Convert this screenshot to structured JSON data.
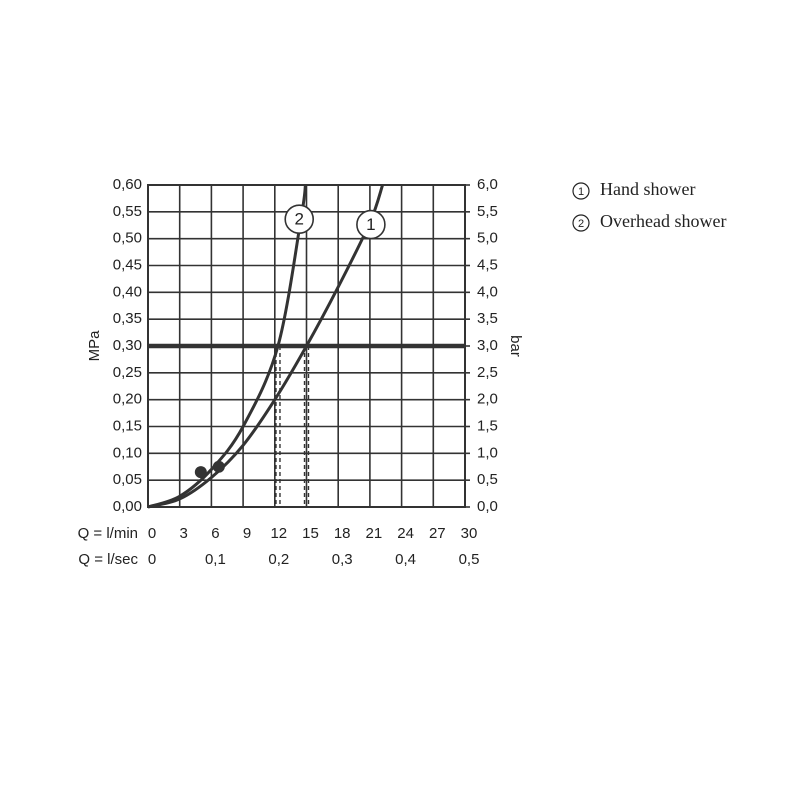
{
  "chart_data": {
    "type": "line",
    "y_label": "MPa",
    "y2_label": "bar",
    "x_label": "Q = l/min",
    "x2_label": "Q = l/sec",
    "xlim": [
      0,
      30
    ],
    "xticks": [
      0,
      3,
      6,
      9,
      12,
      15,
      18,
      21,
      24,
      27,
      30
    ],
    "x2lim": [
      0,
      0.5
    ],
    "x2ticks": [
      0,
      {
        "value": 0.1,
        "label": "0,1"
      },
      {
        "value": 0.2,
        "label": "0,2"
      },
      {
        "value": 0.3,
        "label": "0,3"
      },
      {
        "value": 0.4,
        "label": "0,4"
      },
      {
        "value": 0.5,
        "label": "0,5"
      }
    ],
    "ylim": [
      0,
      0.6
    ],
    "yticks": [
      {
        "value": 0,
        "label": "0,00"
      },
      {
        "value": 0.05,
        "label": "0,05"
      },
      {
        "value": 0.1,
        "label": "0,10"
      },
      {
        "value": 0.15,
        "label": "0,15"
      },
      {
        "value": 0.2,
        "label": "0,20"
      },
      {
        "value": 0.25,
        "label": "0,25"
      },
      {
        "value": 0.3,
        "label": "0,30"
      },
      {
        "value": 0.35,
        "label": "0,35"
      },
      {
        "value": 0.4,
        "label": "0,40"
      },
      {
        "value": 0.45,
        "label": "0,45"
      },
      {
        "value": 0.5,
        "label": "0,50"
      },
      {
        "value": 0.55,
        "label": "0,55"
      },
      {
        "value": 0.6,
        "label": "0,60"
      }
    ],
    "y2lim": [
      0,
      6
    ],
    "y2ticks": [
      {
        "value": 0,
        "label": "0,0"
      },
      {
        "value": 0.5,
        "label": "0,5"
      },
      {
        "value": 1,
        "label": "1,0"
      },
      {
        "value": 1.5,
        "label": "1,5"
      },
      {
        "value": 2,
        "label": "2,0"
      },
      {
        "value": 2.5,
        "label": "2,5"
      },
      {
        "value": 3,
        "label": "3,0"
      },
      {
        "value": 3.5,
        "label": "3,5"
      },
      {
        "value": 4,
        "label": "4,0"
      },
      {
        "value": 4.5,
        "label": "4,5"
      },
      {
        "value": 5,
        "label": "5,0"
      },
      {
        "value": 5.5,
        "label": "5,5"
      },
      {
        "value": 6,
        "label": "6,0"
      }
    ],
    "grid": true,
    "legend": "right",
    "series": [
      {
        "name": "Hand shower",
        "label": "1",
        "color": "#333333",
        "x": [
          0,
          3,
          6,
          9,
          12,
          15,
          18,
          21,
          22.2
        ],
        "values": [
          0,
          0.015,
          0.055,
          0.115,
          0.2,
          0.3,
          0.41,
          0.53,
          0.6
        ]
      },
      {
        "name": "Overhead shower",
        "label": "2",
        "color": "#333333",
        "x": [
          0,
          3,
          6,
          9,
          12.3,
          14.5,
          14.9
        ],
        "values": [
          0,
          0.02,
          0.07,
          0.15,
          0.3,
          0.54,
          0.6
        ]
      }
    ],
    "markers": {
      "x": [
        5,
        6.7
      ],
      "values": [
        0.065,
        0.075
      ]
    },
    "reference_y": 0.3,
    "reference_x": [
      12.3,
      15
    ]
  }
}
